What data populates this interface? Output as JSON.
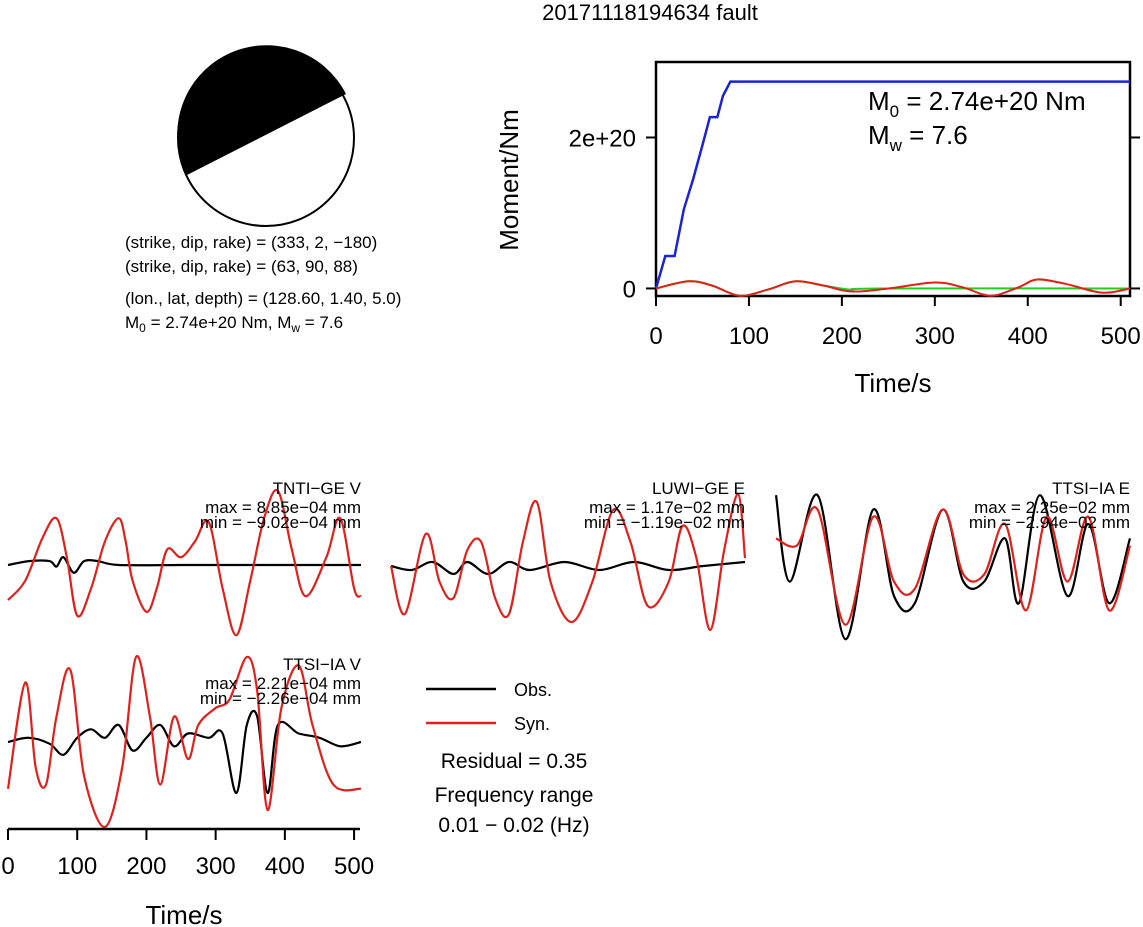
{
  "title": "20171118194634 fault",
  "focal": {
    "line1": "(strike, dip, rake) = (333, 2, −180)",
    "line2": "(strike, dip, rake) = (63, 90, 88)",
    "line3": "(lon., lat, depth) = (128.60, 1.40, 5.0)",
    "line4_m0": "M",
    "line4_m0_sub": "0",
    "line4_mid": " = 2.74e+20 Nm, M",
    "line4_mw_sub": "w",
    "line4_end": " = 7.6"
  },
  "legend": {
    "obs": "Obs.",
    "syn": "Syn.",
    "residual": "Residual = 0.35",
    "freq1": "Frequency range",
    "freq2": "0.01 − 0.02 (Hz)"
  },
  "colors": {
    "obs": "#000000",
    "syn": "#e0201a",
    "moment": "#1a23d6",
    "stf_green": "#22cc22",
    "stf_olive": "#8a7a1a"
  },
  "chart_data": [
    {
      "type": "line",
      "title": "",
      "xlabel": "Time/s",
      "ylabel": "Moment/Nm",
      "xlim": [
        0,
        510
      ],
      "ylim": [
        -1e+19,
        3e+20
      ],
      "xticks": [
        "0",
        "100",
        "200",
        "300",
        "400",
        "500"
      ],
      "yticks": [
        "0",
        "2e+20"
      ],
      "annotation_m0_main": "M",
      "annotation_m0_sub": "0",
      "annotation_m0_val": " = 2.74e+20 Nm",
      "annotation_mw_main": "M",
      "annotation_mw_sub": "w",
      "annotation_mw_val": " = 7.6",
      "series": [
        {
          "values_x": [
            0,
            10,
            20,
            30,
            40,
            50,
            58,
            66,
            72,
            80,
            510
          ],
          "values_y": [
            0.0,
            4.3e+19,
            4.3e+19,
            1.05e+20,
            1.45e+20,
            1.9e+20,
            2.27e+20,
            2.27e+20,
            2.55e+20,
            2.74e+20,
            2.74e+20
          ]
        }
      ],
      "rate_series_red": [
        [
          0,
          0.0
        ],
        [
          35,
          0.12
        ],
        [
          60,
          0.05
        ],
        [
          90,
          -0.12
        ],
        [
          120,
          -0.02
        ],
        [
          150,
          0.12
        ],
        [
          180,
          0.05
        ],
        [
          210,
          -0.05
        ],
        [
          250,
          0.0
        ],
        [
          300,
          0.1
        ],
        [
          330,
          0.02
        ],
        [
          360,
          -0.12
        ],
        [
          390,
          0.02
        ],
        [
          410,
          0.15
        ],
        [
          440,
          0.08
        ],
        [
          480,
          -0.07
        ],
        [
          510,
          0.0
        ]
      ],
      "rate_series_green": [
        [
          0,
          0.0
        ],
        [
          35,
          0.12
        ],
        [
          60,
          0.05
        ],
        [
          90,
          -0.12
        ],
        [
          120,
          -0.02
        ],
        [
          150,
          0.12
        ],
        [
          180,
          0.05
        ],
        [
          210,
          -0.02
        ],
        [
          240,
          0.0
        ],
        [
          510,
          0.0
        ]
      ]
    },
    {
      "type": "line",
      "title": "TNTI−GE V",
      "max_label": "max = 8.85e−04 mm",
      "min_label": "min = −9.02e−04 mm",
      "obs": [
        [
          0,
          0
        ],
        [
          30,
          0.05
        ],
        [
          60,
          0.05
        ],
        [
          70,
          -0.02
        ],
        [
          80,
          0.1
        ],
        [
          95,
          -0.1
        ],
        [
          110,
          0.05
        ],
        [
          130,
          0.05
        ],
        [
          160,
          0
        ],
        [
          250,
          0
        ],
        [
          300,
          0
        ],
        [
          400,
          0
        ],
        [
          510,
          0
        ]
      ],
      "syn": [
        [
          0,
          -0.45
        ],
        [
          25,
          -0.2
        ],
        [
          50,
          0.35
        ],
        [
          70,
          0.6
        ],
        [
          85,
          0.1
        ],
        [
          100,
          -0.65
        ],
        [
          120,
          -0.3
        ],
        [
          140,
          0.3
        ],
        [
          160,
          0.6
        ],
        [
          170,
          0.3
        ],
        [
          180,
          -0.2
        ],
        [
          200,
          -0.6
        ],
        [
          215,
          -0.3
        ],
        [
          230,
          0.2
        ],
        [
          250,
          0.1
        ],
        [
          270,
          0.3
        ],
        [
          290,
          0.55
        ],
        [
          310,
          -0.3
        ],
        [
          330,
          -0.9
        ],
        [
          350,
          -0.2
        ],
        [
          370,
          0.6
        ],
        [
          390,
          0.95
        ],
        [
          410,
          0.2
        ],
        [
          430,
          -0.4
        ],
        [
          460,
          0.1
        ],
        [
          480,
          0.6
        ],
        [
          500,
          -0.3
        ],
        [
          510,
          -0.4
        ]
      ]
    },
    {
      "type": "line",
      "title": "LUWI−GE E",
      "max_label": "max = 1.17e−02 mm",
      "min_label": "min = −1.19e−02 mm",
      "obs": [
        [
          0,
          0
        ],
        [
          30,
          -0.05
        ],
        [
          60,
          0.05
        ],
        [
          90,
          -0.1
        ],
        [
          110,
          0.05
        ],
        [
          140,
          -0.1
        ],
        [
          170,
          0.05
        ],
        [
          200,
          -0.05
        ],
        [
          250,
          0.05
        ],
        [
          300,
          -0.05
        ],
        [
          350,
          0.05
        ],
        [
          400,
          -0.05
        ],
        [
          450,
          0
        ],
        [
          510,
          0.05
        ]
      ],
      "syn": [
        [
          0,
          0
        ],
        [
          20,
          -0.6
        ],
        [
          50,
          0.4
        ],
        [
          70,
          -0.2
        ],
        [
          90,
          -0.4
        ],
        [
          110,
          0.2
        ],
        [
          130,
          0.3
        ],
        [
          150,
          -0.4
        ],
        [
          170,
          -0.6
        ],
        [
          190,
          0.3
        ],
        [
          210,
          0.8
        ],
        [
          230,
          -0.2
        ],
        [
          260,
          -0.7
        ],
        [
          290,
          -0.2
        ],
        [
          320,
          0.7
        ],
        [
          345,
          0.3
        ],
        [
          370,
          -0.5
        ],
        [
          400,
          -0.2
        ],
        [
          420,
          0.5
        ],
        [
          440,
          0.1
        ],
        [
          460,
          -0.8
        ],
        [
          480,
          0.2
        ],
        [
          500,
          0.9
        ],
        [
          510,
          0.1
        ]
      ]
    },
    {
      "type": "line",
      "title": "TTSI−IA E",
      "max_label": "max = 2.25e−02 mm",
      "min_label": "min = −2.94e−02 mm",
      "obs": [
        [
          0,
          0.9
        ],
        [
          20,
          -0.3
        ],
        [
          60,
          0.9
        ],
        [
          100,
          -1.1
        ],
        [
          140,
          0.7
        ],
        [
          170,
          -0.5
        ],
        [
          200,
          -0.6
        ],
        [
          240,
          0.7
        ],
        [
          270,
          -0.3
        ],
        [
          300,
          -0.3
        ],
        [
          330,
          0.3
        ],
        [
          350,
          -0.6
        ],
        [
          380,
          0.9
        ],
        [
          420,
          -0.5
        ],
        [
          450,
          0.5
        ],
        [
          480,
          -0.6
        ],
        [
          510,
          0.3
        ]
      ],
      "syn": [
        [
          0,
          0.3
        ],
        [
          30,
          0.2
        ],
        [
          60,
          0.7
        ],
        [
          100,
          -0.9
        ],
        [
          140,
          0.6
        ],
        [
          170,
          -0.3
        ],
        [
          200,
          -0.4
        ],
        [
          240,
          0.7
        ],
        [
          270,
          -0.2
        ],
        [
          300,
          -0.2
        ],
        [
          330,
          0.5
        ],
        [
          360,
          -0.7
        ],
        [
          390,
          0.6
        ],
        [
          420,
          -0.3
        ],
        [
          450,
          0.6
        ],
        [
          480,
          -0.7
        ],
        [
          510,
          0.2
        ]
      ]
    },
    {
      "type": "line",
      "title": "TTSI−IA V",
      "max_label": "max = 2.21e−04 mm",
      "min_label": "min = −2.26e−04 mm",
      "xlabel": "Time/s",
      "xticks": [
        "0",
        "100",
        "200",
        "300",
        "400",
        "500"
      ],
      "obs": [
        [
          0,
          0
        ],
        [
          30,
          0.05
        ],
        [
          60,
          -0.02
        ],
        [
          80,
          -0.15
        ],
        [
          100,
          0.05
        ],
        [
          120,
          0.15
        ],
        [
          140,
          0.05
        ],
        [
          160,
          0.2
        ],
        [
          180,
          -0.1
        ],
        [
          200,
          0.05
        ],
        [
          220,
          0.2
        ],
        [
          240,
          -0.05
        ],
        [
          260,
          0.1
        ],
        [
          290,
          0.05
        ],
        [
          310,
          0.1
        ],
        [
          330,
          -0.6
        ],
        [
          345,
          0.2
        ],
        [
          360,
          0.3
        ],
        [
          375,
          -0.6
        ],
        [
          390,
          0.2
        ],
        [
          420,
          0.1
        ],
        [
          450,
          0.05
        ],
        [
          480,
          -0.05
        ],
        [
          510,
          0
        ]
      ],
      "syn": [
        [
          0,
          -0.55
        ],
        [
          25,
          0.7
        ],
        [
          40,
          -0.3
        ],
        [
          55,
          -0.5
        ],
        [
          70,
          0.3
        ],
        [
          90,
          0.85
        ],
        [
          110,
          -0.4
        ],
        [
          140,
          -1.0
        ],
        [
          165,
          -0.3
        ],
        [
          185,
          1.0
        ],
        [
          205,
          0.3
        ],
        [
          220,
          -0.5
        ],
        [
          240,
          0.3
        ],
        [
          260,
          -0.2
        ],
        [
          275,
          0.2
        ],
        [
          300,
          0.4
        ],
        [
          320,
          0.5
        ],
        [
          345,
          1.0
        ],
        [
          360,
          0.6
        ],
        [
          375,
          -0.8
        ],
        [
          395,
          0.4
        ],
        [
          420,
          0.9
        ],
        [
          440,
          0.2
        ],
        [
          470,
          -0.5
        ],
        [
          510,
          -0.55
        ]
      ]
    }
  ]
}
